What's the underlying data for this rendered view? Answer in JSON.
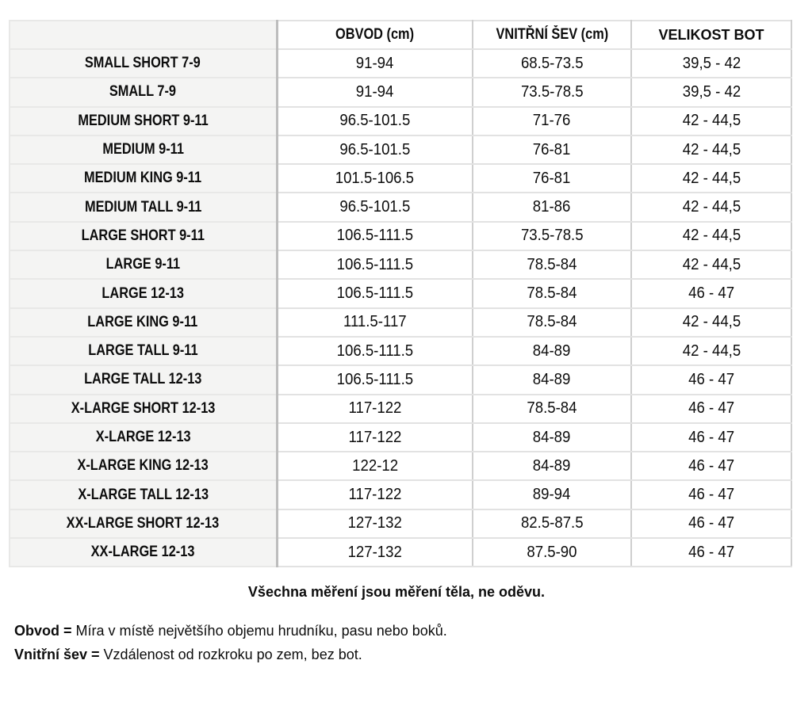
{
  "colors": {
    "page_bg": "#ffffff",
    "text": "#0d0d0d",
    "label_bg": "#f4f4f3",
    "label_border": "#e8e8e7",
    "grid_border": "#e2e2e2",
    "grid_border_v": "#cfcfcf",
    "divider": "#bdbdbd"
  },
  "table": {
    "headers": [
      "",
      "OBVOD (cm)",
      "VNITŘNÍ ŠEV (cm)",
      "VELIKOST BOT"
    ],
    "rows": [
      {
        "label": "SMALL SHORT 7-9",
        "obvod": "91-94",
        "sev": "68.5-73.5",
        "bot": "39,5 - 42"
      },
      {
        "label": "SMALL 7-9",
        "obvod": "91-94",
        "sev": "73.5-78.5",
        "bot": "39,5 - 42"
      },
      {
        "label": "MEDIUM SHORT 9-11",
        "obvod": "96.5-101.5",
        "sev": "71-76",
        "bot": "42 - 44,5"
      },
      {
        "label": "MEDIUM 9-11",
        "obvod": "96.5-101.5",
        "sev": "76-81",
        "bot": "42 - 44,5"
      },
      {
        "label": "MEDIUM KING 9-11",
        "obvod": "101.5-106.5",
        "sev": "76-81",
        "bot": "42 - 44,5"
      },
      {
        "label": "MEDIUM TALL 9-11",
        "obvod": "96.5-101.5",
        "sev": "81-86",
        "bot": "42 - 44,5"
      },
      {
        "label": "LARGE SHORT 9-11",
        "obvod": "106.5-111.5",
        "sev": "73.5-78.5",
        "bot": "42 - 44,5"
      },
      {
        "label": "LARGE 9-11",
        "obvod": "106.5-111.5",
        "sev": "78.5-84",
        "bot": "42 - 44,5"
      },
      {
        "label": "LARGE 12-13",
        "obvod": "106.5-111.5",
        "sev": "78.5-84",
        "bot": "46 - 47"
      },
      {
        "label": "LARGE KING 9-11",
        "obvod": "111.5-117",
        "sev": "78.5-84",
        "bot": "42 - 44,5"
      },
      {
        "label": "LARGE TALL 9-11",
        "obvod": "106.5-111.5",
        "sev": "84-89",
        "bot": "42 - 44,5"
      },
      {
        "label": "LARGE TALL 12-13",
        "obvod": "106.5-111.5",
        "sev": "84-89",
        "bot": "46 - 47"
      },
      {
        "label": "X-LARGE SHORT 12-13",
        "obvod": "117-122",
        "sev": "78.5-84",
        "bot": "46 - 47"
      },
      {
        "label": "X-LARGE 12-13",
        "obvod": "117-122",
        "sev": "84-89",
        "bot": "46 - 47"
      },
      {
        "label": "X-LARGE KING 12-13",
        "obvod": "122-12",
        "sev": "84-89",
        "bot": "46 - 47"
      },
      {
        "label": "X-LARGE TALL 12-13",
        "obvod": "117-122",
        "sev": "89-94",
        "bot": "46 - 47"
      },
      {
        "label": "XX-LARGE SHORT 12-13",
        "obvod": "127-132",
        "sev": "82.5-87.5",
        "bot": "46 - 47"
      },
      {
        "label": "XX-LARGE 12-13",
        "obvod": "127-132",
        "sev": "87.5-90",
        "bot": "46 - 47"
      }
    ]
  },
  "footer": {
    "title": "Všechna měření jsou měření těla, ne oděvu.",
    "notes": [
      {
        "term": "Obvod =",
        "definition": "Míra v místě největšího objemu hrudníku, pasu nebo boků."
      },
      {
        "term": "Vnitřní šev =",
        "definition": "Vzdálenost od rozkroku po zem, bez bot."
      }
    ]
  }
}
